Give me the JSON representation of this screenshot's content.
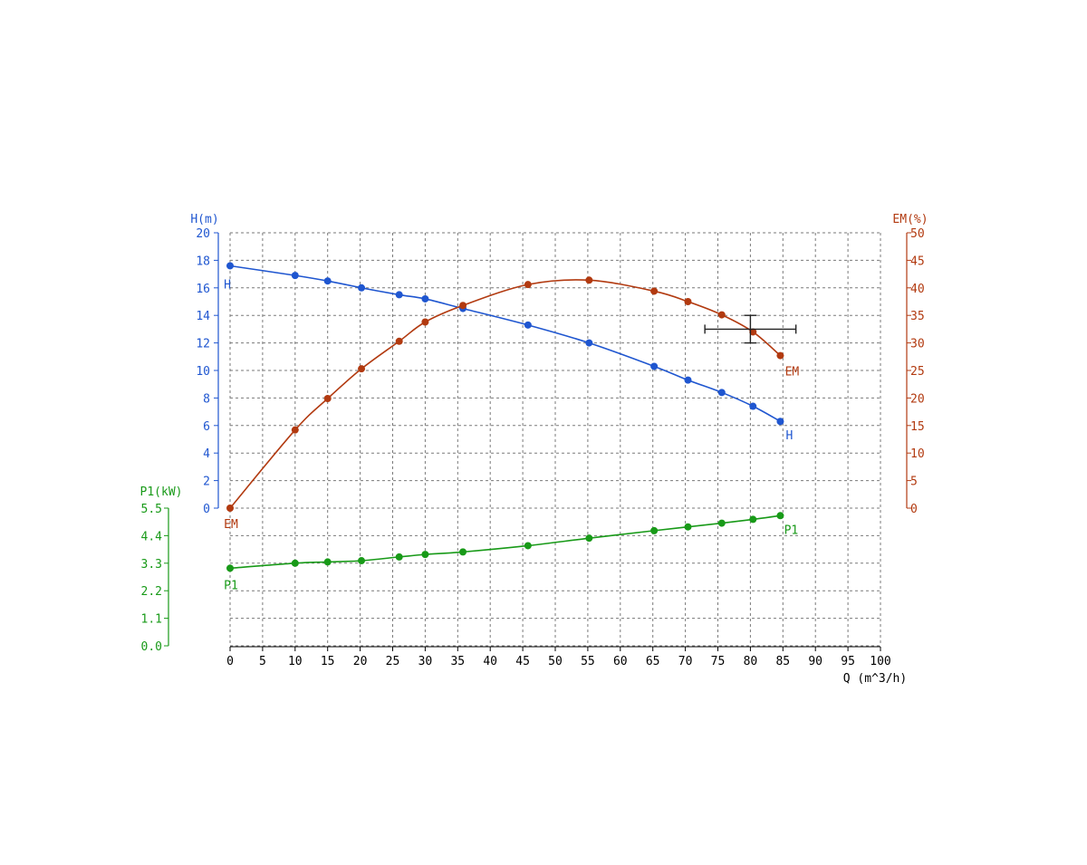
{
  "colors": {
    "head": "#1f56d0",
    "efficiency": "#b23a10",
    "power": "#189a18",
    "grid": "#7a7a7a",
    "axis": "#000000",
    "duty_point": "#222222"
  },
  "chart_data": {
    "type": "line",
    "grid": true,
    "x_axis": {
      "label": "Q (m^3/h)",
      "range": [
        0,
        100
      ],
      "ticks": [
        "0",
        "5",
        "10",
        "15",
        "20",
        "25",
        "30",
        "35",
        "40",
        "45",
        "50",
        "55",
        "60",
        "65",
        "70",
        "75",
        "80",
        "85",
        "90",
        "95",
        "100"
      ]
    },
    "axes": {
      "head": {
        "label": "H(m)",
        "range": [
          0,
          20
        ],
        "ticks": [
          "0",
          "2",
          "4",
          "6",
          "8",
          "10",
          "12",
          "14",
          "16",
          "18",
          "20"
        ]
      },
      "efficiency": {
        "label": "EM(%)",
        "range": [
          0,
          50
        ],
        "ticks": [
          "0",
          "5",
          "10",
          "15",
          "20",
          "25",
          "30",
          "35",
          "40",
          "45",
          "50"
        ]
      },
      "power": {
        "label": "P1(kW)",
        "range": [
          0,
          5.5
        ],
        "ticks": [
          "0.0",
          "1.1",
          "2.2",
          "3.3",
          "4.4",
          "5.5"
        ]
      }
    },
    "series": [
      {
        "key": "head",
        "name": "H",
        "axis": "head",
        "x": [
          0,
          10,
          15,
          20.2,
          26,
          30,
          35.8,
          45.8,
          55.2,
          65.2,
          70.4,
          75.6,
          80.4,
          84.6
        ],
        "y": [
          17.6,
          16.9,
          16.5,
          16.0,
          15.5,
          15.2,
          14.5,
          13.3,
          12.0,
          10.3,
          9.3,
          8.4,
          7.4,
          6.3
        ]
      },
      {
        "key": "efficiency",
        "name": "EM",
        "axis": "efficiency",
        "x": [
          0,
          10,
          15,
          20.2,
          26,
          30,
          35.8,
          45.8,
          55.2,
          65.2,
          70.4,
          75.6,
          80.4,
          84.6
        ],
        "y": [
          0,
          14.2,
          19.9,
          25.3,
          30.3,
          33.8,
          36.8,
          40.6,
          41.4,
          39.4,
          37.5,
          35.1,
          32.0,
          27.7
        ]
      },
      {
        "key": "power",
        "name": "P1",
        "axis": "power",
        "x": [
          0,
          10,
          15,
          20.2,
          26,
          30,
          35.8,
          45.8,
          55.2,
          65.2,
          70.4,
          75.6,
          80.4,
          84.6
        ],
        "y": [
          3.1,
          3.3,
          3.35,
          3.4,
          3.55,
          3.65,
          3.75,
          4.0,
          4.3,
          4.6,
          4.75,
          4.9,
          5.05,
          5.2
        ]
      }
    ],
    "duty_point": {
      "x": 80,
      "head": 13.0,
      "x_range": [
        73,
        87
      ],
      "head_range": [
        12.0,
        14.0
      ]
    }
  }
}
